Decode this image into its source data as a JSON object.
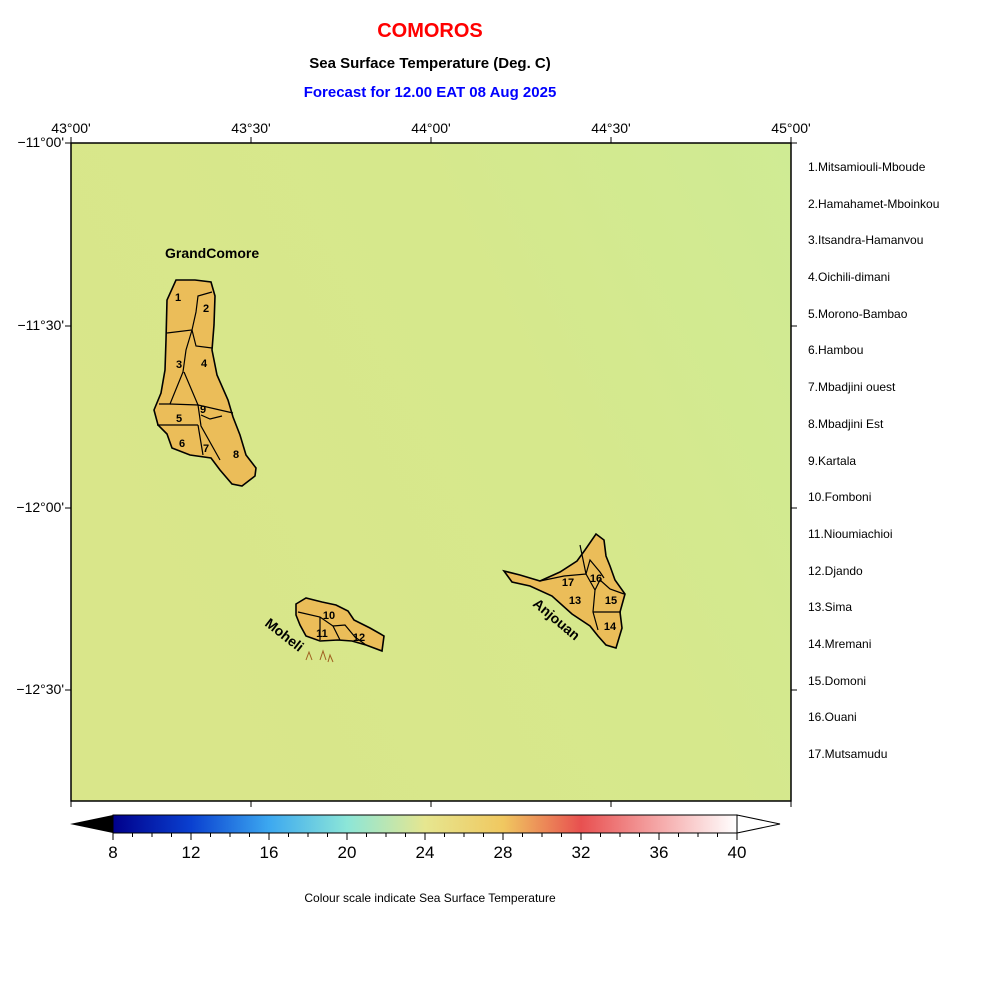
{
  "header": {
    "title": "COMOROS",
    "subtitle": "Sea Surface Temperature (Deg. C)",
    "forecast": "Forecast for  12.00 EAT 08 Aug 2025"
  },
  "colors": {
    "title": "#ff0000",
    "forecast": "#0000ff",
    "sea_west": "#d9e68a",
    "sea_northeast": "#cfeb94",
    "land": "#ebbd59",
    "land_outline": "#000000"
  },
  "axes": {
    "lon_labels": [
      "43°00'",
      "43°30'",
      "44°00'",
      "44°30'",
      "45°00'"
    ],
    "lat_labels": [
      "−11°00'",
      "−11°30'",
      "−12°00'",
      "−12°30'"
    ]
  },
  "islands": {
    "grand_comore": "GrandComore",
    "moheli": "Moheli",
    "anjouan": "Anjouan"
  },
  "region_numbers": [
    "1",
    "2",
    "3",
    "4",
    "5",
    "6",
    "7",
    "8",
    "9",
    "10",
    "11",
    "12",
    "13",
    "14",
    "15",
    "16",
    "17"
  ],
  "legend": [
    "1.Mitsamiouli-Mboude",
    "2.Hamahamet-Mboinkou",
    "3.Itsandra-Hamanvou",
    "4.Oichili-dimani",
    "5.Morono-Bambao",
    "6.Hambou",
    "7.Mbadjini ouest",
    "8.Mbadjini Est",
    "9.Kartala",
    "10.Fomboni",
    "11.Nioumiachioi",
    "12.Djando",
    "13.Sima",
    "14.Mremani",
    "15.Domoni",
    "16.Ouani",
    "17.Mutsamudu"
  ],
  "colorbar": {
    "min": 8,
    "max": 40,
    "ticks": [
      "8",
      "12",
      "16",
      "20",
      "24",
      "28",
      "32",
      "36",
      "40"
    ],
    "caption": "Colour scale indicate Sea Surface Temperature",
    "stops": [
      "#00008b",
      "#0a40d0",
      "#3ca8f0",
      "#8ce6d8",
      "#e6e690",
      "#f0c860",
      "#e85050",
      "#f5a8a8",
      "#ffffff"
    ]
  }
}
